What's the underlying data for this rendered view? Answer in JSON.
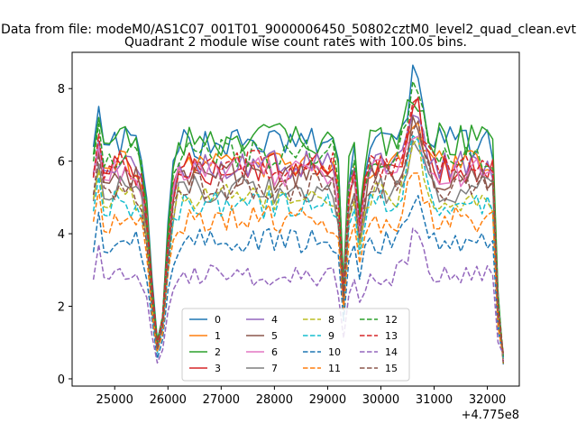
{
  "suptitle": "Data from file: modeM0/AS1C07_001T01_9000006450_50802cztM0_level2_quad_clean.evt",
  "chart_data": {
    "type": "line",
    "title": "Quadrant 2 module wise count rates with 100.0s bins.",
    "xlabel": "",
    "ylabel": "",
    "x_offset_label": "+4.775e8",
    "xlim": [
      24200,
      32600
    ],
    "ylim": [
      -0.2,
      9.0
    ],
    "xticks": [
      25000,
      26000,
      27000,
      28000,
      29000,
      30000,
      31000,
      32000
    ],
    "yticks": [
      0,
      2,
      4,
      6,
      8
    ],
    "grid": false,
    "legend": {
      "placement": "bottom-center",
      "columns": 4
    },
    "series": [
      {
        "name": "0",
        "color": "#1f77b4",
        "dash": "solid",
        "level": 6.5,
        "amp": 0.45,
        "peak": 8.5
      },
      {
        "name": "1",
        "color": "#ff7f0e",
        "dash": "solid",
        "level": 5.9,
        "amp": 0.4,
        "peak": 7.4
      },
      {
        "name": "2",
        "color": "#2ca02c",
        "dash": "solid",
        "level": 6.6,
        "amp": 0.45,
        "peak": 7.9
      },
      {
        "name": "3",
        "color": "#d62728",
        "dash": "solid",
        "level": 5.8,
        "amp": 0.45,
        "peak": 7.6
      },
      {
        "name": "4",
        "color": "#9467bd",
        "dash": "solid",
        "level": 5.9,
        "amp": 0.4,
        "peak": 7.2
      },
      {
        "name": "5",
        "color": "#8c564b",
        "dash": "solid",
        "level": 5.6,
        "amp": 0.4,
        "peak": 7.0
      },
      {
        "name": "6",
        "color": "#e377c2",
        "dash": "solid",
        "level": 5.7,
        "amp": 0.4,
        "peak": 7.0
      },
      {
        "name": "7",
        "color": "#7f7f7f",
        "dash": "solid",
        "level": 5.2,
        "amp": 0.4,
        "peak": 6.8
      },
      {
        "name": "8",
        "color": "#bcbd22",
        "dash": "dashed",
        "level": 5.0,
        "amp": 0.4,
        "peak": 6.5
      },
      {
        "name": "9",
        "color": "#17becf",
        "dash": "dashed",
        "level": 4.8,
        "amp": 0.4,
        "peak": 6.6
      },
      {
        "name": "10",
        "color": "#1f77b4",
        "dash": "dashed",
        "level": 3.8,
        "amp": 0.35,
        "peak": 5.2
      },
      {
        "name": "11",
        "color": "#ff7f0e",
        "dash": "dashed",
        "level": 4.4,
        "amp": 0.4,
        "peak": 6.0
      },
      {
        "name": "12",
        "color": "#2ca02c",
        "dash": "dashed",
        "level": 6.2,
        "amp": 0.4,
        "peak": 8.4
      },
      {
        "name": "13",
        "color": "#d62728",
        "dash": "dashed",
        "level": 5.9,
        "amp": 0.4,
        "peak": 7.6
      },
      {
        "name": "14",
        "color": "#9467bd",
        "dash": "dashed",
        "level": 2.85,
        "amp": 0.3,
        "peak": 4.0
      },
      {
        "name": "15",
        "color": "#8c564b",
        "dash": "dashed",
        "level": 5.3,
        "amp": 0.4,
        "peak": 7.3
      }
    ]
  }
}
